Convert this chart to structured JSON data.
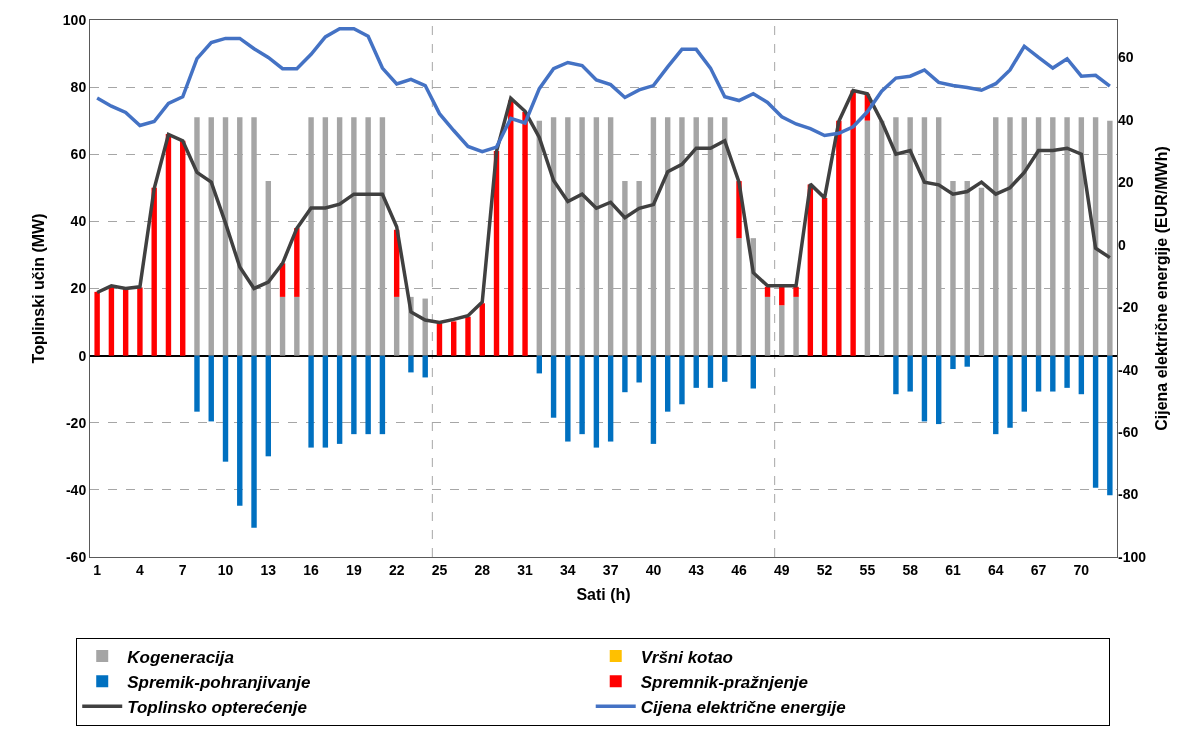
{
  "chart_data": {
    "type": "bar",
    "stacked": true,
    "xlabel": "Sati (h)",
    "ylabel": "Toplinski učin (MW)",
    "y2label": "Cijena električne energije (EUR/MWh)",
    "x": [
      1,
      2,
      3,
      4,
      5,
      6,
      7,
      8,
      9,
      10,
      11,
      12,
      13,
      14,
      15,
      16,
      17,
      18,
      19,
      20,
      21,
      22,
      23,
      24,
      25,
      26,
      27,
      28,
      29,
      30,
      31,
      32,
      33,
      34,
      35,
      36,
      37,
      38,
      39,
      40,
      41,
      42,
      43,
      44,
      45,
      46,
      47,
      48,
      49,
      50,
      51,
      52,
      53,
      54,
      55,
      56,
      57,
      58,
      59,
      60,
      61,
      62,
      63,
      64,
      65,
      66,
      67,
      68,
      69,
      70,
      71,
      72
    ],
    "xlim": [
      0.5,
      72.5
    ],
    "xticks": [
      1,
      4,
      7,
      10,
      13,
      16,
      19,
      22,
      25,
      28,
      31,
      34,
      37,
      40,
      43,
      46,
      49,
      52,
      55,
      58,
      61,
      64,
      67,
      70
    ],
    "ylim": [
      -60,
      100
    ],
    "yticks": [
      -60,
      -40,
      -20,
      0,
      20,
      40,
      60,
      80,
      100
    ],
    "y2lim": [
      -100,
      72
    ],
    "y2ticks": [
      -100,
      -80,
      -60,
      -40,
      -20,
      0,
      20,
      40,
      60
    ],
    "grid": "y",
    "legend": "bottom",
    "ref_lines": [
      {
        "axis": "x",
        "value": 24.5,
        "color": "#a6a6a6",
        "line_style": "dashed"
      },
      {
        "axis": "x",
        "value": 48.5,
        "color": "#a6a6a6",
        "line_style": "dashed"
      }
    ],
    "series": [
      {
        "name": "Kogeneracija",
        "color": "#a5a5a5",
        "values": [
          null,
          null,
          null,
          null,
          null,
          null,
          null,
          71,
          71,
          71,
          71,
          71,
          52,
          17.5,
          17.5,
          71,
          71,
          71,
          71,
          71,
          71,
          17.5,
          17.5,
          17,
          null,
          null,
          null,
          null,
          null,
          null,
          null,
          70,
          71,
          71,
          71,
          71,
          71,
          52,
          52,
          71,
          71,
          71,
          71,
          71,
          71,
          35,
          35,
          17.5,
          15,
          17.5,
          null,
          null,
          null,
          null,
          70,
          70,
          71,
          71,
          71,
          71,
          52,
          52,
          50,
          71,
          71,
          71,
          71,
          71,
          71,
          71,
          71,
          70
        ]
      },
      {
        "name": "Vršni kotao",
        "color": "#ffc000",
        "values": [
          null,
          null,
          null,
          null,
          null,
          null,
          null,
          null,
          null,
          null,
          null,
          null,
          null,
          null,
          null,
          null,
          null,
          null,
          null,
          null,
          null,
          null,
          null,
          null,
          null,
          null,
          null,
          null,
          null,
          null,
          null,
          null,
          null,
          null,
          null,
          null,
          null,
          null,
          null,
          null,
          null,
          null,
          null,
          null,
          null,
          null,
          null,
          null,
          null,
          null,
          null,
          null,
          null,
          null,
          null,
          null,
          null,
          null,
          null,
          null,
          null,
          null,
          null,
          null,
          null,
          null,
          null,
          null,
          null,
          null,
          null,
          null
        ]
      },
      {
        "name": "Spremik-pohranjivanje",
        "color": "#0070c0",
        "values": [
          null,
          null,
          null,
          null,
          null,
          null,
          null,
          -16.7,
          -19.6,
          -31.6,
          -44.7,
          -51.3,
          -30,
          null,
          null,
          -27.4,
          -27.4,
          -26.3,
          -23.4,
          -23.4,
          -23.4,
          null,
          -5,
          -6.5,
          null,
          null,
          null,
          null,
          null,
          null,
          null,
          -5.3,
          -18.5,
          -25.6,
          -23.4,
          -27.4,
          -25.6,
          -10.9,
          -8,
          -26.3,
          -16.7,
          -14.5,
          -9.6,
          -9.6,
          -7.8,
          null,
          -9.8,
          null,
          null,
          null,
          null,
          null,
          null,
          null,
          null,
          null,
          -11.5,
          -10.7,
          -19.6,
          -20.4,
          -4,
          -3.3,
          null,
          -23.4,
          -21.5,
          -16.7,
          -10.7,
          -10.7,
          -9.6,
          -11.5,
          -39.4,
          -41.6
        ]
      },
      {
        "name": "Spremnik-pražnjenje",
        "color": "#ff0000",
        "values": [
          19,
          20.5,
          20,
          20.3,
          50,
          66,
          64,
          null,
          null,
          null,
          null,
          null,
          null,
          10,
          20.5,
          null,
          null,
          null,
          null,
          null,
          null,
          20,
          null,
          null,
          9.7,
          10.2,
          11.6,
          15.6,
          61,
          76,
          72.6,
          null,
          null,
          null,
          null,
          null,
          null,
          null,
          null,
          null,
          null,
          null,
          null,
          null,
          null,
          17,
          null,
          3,
          6,
          3,
          51,
          47,
          70,
          79,
          8,
          null,
          null,
          null,
          null,
          null,
          null,
          null,
          null,
          null,
          null,
          null,
          null,
          null,
          null,
          null,
          null,
          null
        ]
      },
      {
        "name": "Toplinsko opterećenje",
        "type": "line",
        "color": "#404040",
        "values": [
          18.8,
          20.8,
          20,
          20.5,
          49.8,
          65.9,
          64,
          54.6,
          51.7,
          39.5,
          26.4,
          20,
          21.9,
          27.5,
          37.9,
          44,
          44,
          45.1,
          48.1,
          48.1,
          48.1,
          38.4,
          13,
          10.6,
          9.9,
          10.8,
          11.9,
          16,
          60.9,
          76.7,
          72.8,
          65,
          52.2,
          45.9,
          48.1,
          43.9,
          45.7,
          41.1,
          43.9,
          45,
          54.8,
          57,
          61.8,
          61.8,
          64,
          51.7,
          24.7,
          20.8,
          20.8,
          20.8,
          51.1,
          47,
          69.8,
          79,
          78,
          69.8,
          60,
          61.1,
          51.7,
          50.9,
          48.1,
          48.9,
          51.7,
          48.1,
          50,
          54.6,
          61.1,
          61.1,
          61.8,
          60,
          32,
          29.2
        ]
      },
      {
        "name": "Cijena električne energije",
        "type": "line",
        "axis": "y2",
        "color": "#4472c4",
        "values": [
          47,
          44.4,
          42.4,
          38.2,
          39.5,
          45.3,
          47.4,
          59.6,
          64.8,
          66.1,
          66.1,
          62.8,
          60,
          56.4,
          56.4,
          61,
          66.6,
          69.2,
          69.2,
          66.8,
          56.6,
          51.5,
          53,
          51,
          42,
          36.6,
          31.5,
          29.8,
          31.3,
          40.5,
          39,
          50,
          56.4,
          58.4,
          57.4,
          52.8,
          51.3,
          47.2,
          49.6,
          51,
          57,
          62.6,
          62.6,
          56.6,
          47.4,
          46.2,
          48.4,
          45.6,
          41,
          38.7,
          37.2,
          35,
          35.7,
          37.8,
          42.6,
          49.2,
          53.4,
          54,
          56,
          52,
          51,
          50.4,
          49.5,
          51.6,
          56,
          63.6,
          60,
          56.6,
          59.6,
          54,
          54.3,
          50.8
        ]
      }
    ]
  }
}
